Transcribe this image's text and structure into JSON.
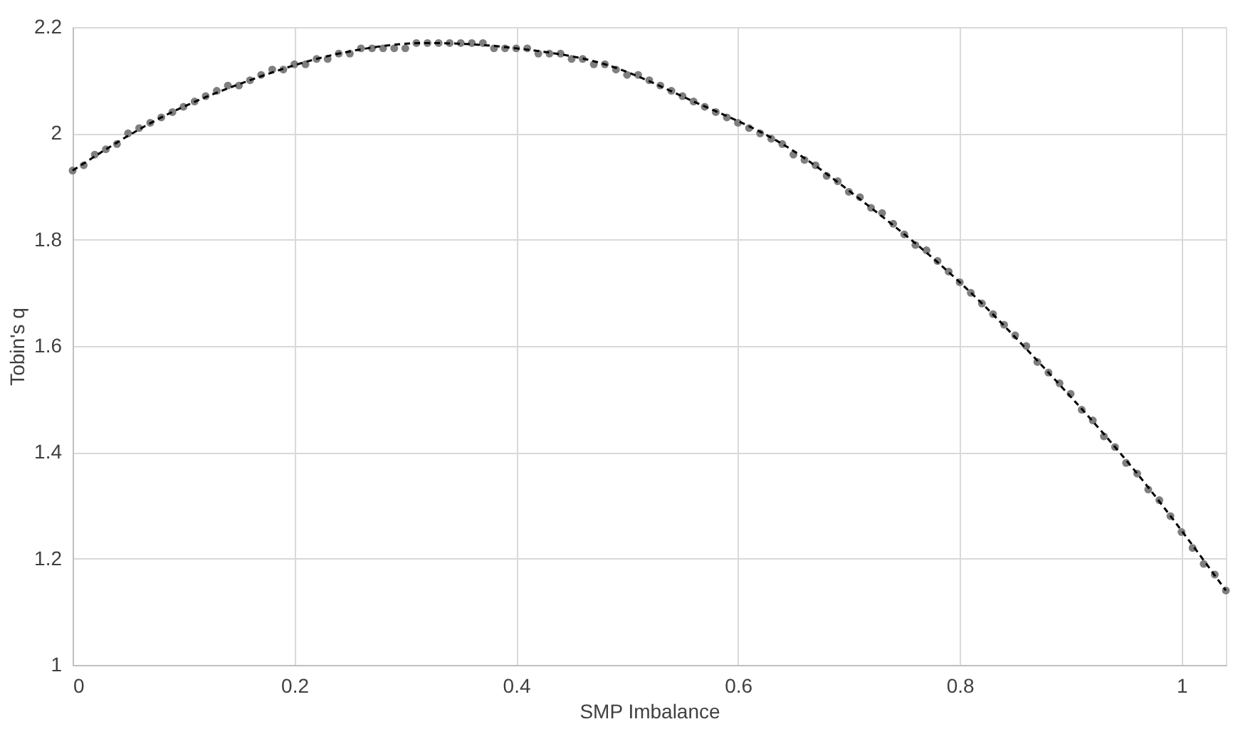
{
  "chart_data": {
    "type": "scatter",
    "xlabel": "SMP Imbalance",
    "ylabel": "Tobin's q",
    "xlim": [
      0,
      1.04
    ],
    "xticks": [
      0,
      0.2,
      0.4,
      0.6,
      0.8,
      1
    ],
    "ylim": [
      1,
      2.2
    ],
    "yticks": [
      1,
      1.2,
      1.4,
      1.6,
      1.8,
      2,
      2.2
    ],
    "grid": true,
    "series": [
      {
        "type": "scatter",
        "color": "#7f7f7f",
        "marker": "circle",
        "x": [
          0,
          0.01,
          0.02,
          0.03,
          0.04,
          0.05,
          0.06,
          0.07,
          0.08,
          0.09,
          0.1,
          0.11,
          0.12,
          0.13,
          0.14,
          0.15,
          0.16,
          0.17,
          0.18,
          0.19,
          0.2,
          0.21,
          0.22,
          0.23,
          0.24,
          0.25,
          0.26,
          0.27,
          0.28,
          0.29,
          0.3,
          0.31,
          0.32,
          0.33,
          0.34,
          0.35,
          0.36,
          0.37,
          0.38,
          0.39,
          0.4,
          0.41,
          0.42,
          0.43,
          0.44,
          0.45,
          0.46,
          0.47,
          0.48,
          0.49,
          0.5,
          0.51,
          0.52,
          0.53,
          0.54,
          0.55,
          0.56,
          0.57,
          0.58,
          0.59,
          0.6,
          0.61,
          0.62,
          0.63,
          0.64,
          0.65,
          0.66,
          0.67,
          0.68,
          0.69,
          0.7,
          0.71,
          0.72,
          0.73,
          0.74,
          0.75,
          0.76,
          0.77,
          0.78,
          0.79,
          0.8,
          0.81,
          0.82,
          0.83,
          0.84,
          0.85,
          0.86,
          0.87,
          0.88,
          0.89,
          0.9,
          0.91,
          0.92,
          0.93,
          0.94,
          0.95,
          0.96,
          0.97,
          0.98,
          0.99,
          1,
          1.01,
          1.02,
          1.03,
          1.04
        ],
        "values": [
          1.93,
          1.94,
          1.96,
          1.97,
          1.98,
          2.0,
          2.01,
          2.02,
          2.03,
          2.04,
          2.05,
          2.06,
          2.07,
          2.08,
          2.09,
          2.09,
          2.1,
          2.11,
          2.12,
          2.12,
          2.13,
          2.13,
          2.14,
          2.14,
          2.15,
          2.15,
          2.16,
          2.16,
          2.16,
          2.16,
          2.16,
          2.17,
          2.17,
          2.17,
          2.17,
          2.17,
          2.17,
          2.17,
          2.16,
          2.16,
          2.16,
          2.16,
          2.15,
          2.15,
          2.15,
          2.14,
          2.14,
          2.13,
          2.13,
          2.12,
          2.11,
          2.11,
          2.1,
          2.09,
          2.08,
          2.07,
          2.06,
          2.05,
          2.04,
          2.03,
          2.02,
          2.01,
          2.0,
          1.99,
          1.98,
          1.96,
          1.95,
          1.94,
          1.92,
          1.91,
          1.89,
          1.88,
          1.86,
          1.85,
          1.83,
          1.81,
          1.79,
          1.78,
          1.76,
          1.74,
          1.72,
          1.7,
          1.68,
          1.66,
          1.64,
          1.62,
          1.6,
          1.57,
          1.55,
          1.53,
          1.51,
          1.48,
          1.46,
          1.43,
          1.41,
          1.38,
          1.36,
          1.33,
          1.31,
          1.28,
          1.25,
          1.22,
          1.19,
          1.17,
          1.14
        ]
      },
      {
        "type": "line",
        "color": "#000000",
        "line_style": "dashed",
        "x": [
          0,
          0.08,
          0.16,
          0.24,
          0.32,
          0.4,
          0.48,
          0.56,
          0.64,
          0.72,
          0.8,
          0.88,
          0.96,
          1.04
        ],
        "values": [
          1.93,
          2.03,
          2.1,
          2.15,
          2.17,
          2.16,
          2.13,
          2.06,
          1.98,
          1.86,
          1.72,
          1.55,
          1.36,
          1.14
        ]
      }
    ]
  }
}
